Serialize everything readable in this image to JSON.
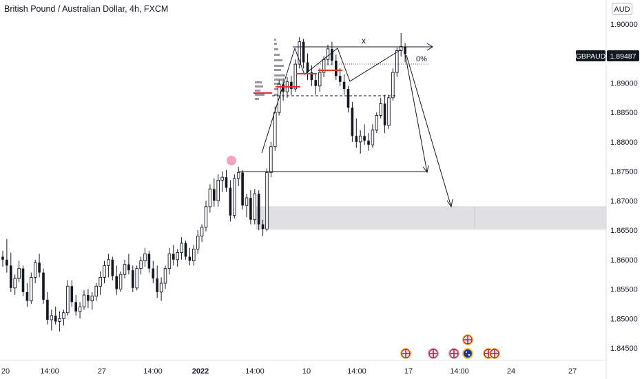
{
  "header": {
    "title": "British Pound / Australian Dollar, 4h, FXCM",
    "currency": "AUD"
  },
  "price_badge": {
    "symbol": "GBPAUD",
    "price": "1.89487",
    "color": "#131722"
  },
  "annotations": {
    "pattern_label": "x",
    "fib_label": "0%"
  },
  "colors": {
    "axis_text": "#131722",
    "grid_bg": "#ffffff",
    "zone_fill": "#e0e0e2",
    "marker": "#f4a4c0",
    "candle": "#131722"
  },
  "chart_data": {
    "type": "candlestick",
    "y_ticks": [
      "1.90000",
      "1.89500",
      "1.89000",
      "1.88500",
      "1.88000",
      "1.87500",
      "1.87000",
      "1.86500",
      "1.86000",
      "1.85500",
      "1.85000",
      "1.84500"
    ],
    "x_ticks": [
      {
        "label": "20",
        "bold": false
      },
      {
        "label": "14:00",
        "bold": false
      },
      {
        "label": "27",
        "bold": false
      },
      {
        "label": "14:00",
        "bold": false
      },
      {
        "label": "2022",
        "bold": true
      },
      {
        "label": "14:00",
        "bold": false
      },
      {
        "label": "10",
        "bold": false
      },
      {
        "label": "14:00",
        "bold": false
      },
      {
        "label": "17",
        "bold": false
      },
      {
        "label": "14:00",
        "bold": false
      },
      {
        "label": "24",
        "bold": false
      },
      {
        "label": "27",
        "bold": false
      }
    ],
    "ylim": [
      1.8424,
      1.9025
    ],
    "candles": [
      [
        1.8605,
        1.8615,
        1.8588,
        1.86
      ],
      [
        1.86,
        1.8635,
        1.8578,
        1.859
      ],
      [
        1.859,
        1.8612,
        1.8545,
        1.8552
      ],
      [
        1.8552,
        1.8575,
        1.854,
        1.8568
      ],
      [
        1.8568,
        1.8598,
        1.8562,
        1.8585
      ],
      [
        1.8585,
        1.859,
        1.8538,
        1.8545
      ],
      [
        1.8545,
        1.856,
        1.852,
        1.853
      ],
      [
        1.853,
        1.8578,
        1.8525,
        1.857
      ],
      [
        1.857,
        1.86,
        1.856,
        1.8595
      ],
      [
        1.8595,
        1.861,
        1.857,
        1.8578
      ],
      [
        1.8578,
        1.8585,
        1.8525,
        1.8532
      ],
      [
        1.8532,
        1.8545,
        1.849,
        1.8498
      ],
      [
        1.8498,
        1.8515,
        1.848,
        1.8505
      ],
      [
        1.8505,
        1.852,
        1.849,
        1.8495
      ],
      [
        1.8495,
        1.8512,
        1.8478,
        1.85
      ],
      [
        1.85,
        1.8515,
        1.8488,
        1.851
      ],
      [
        1.851,
        1.8565,
        1.8505,
        1.8555
      ],
      [
        1.8555,
        1.8565,
        1.852,
        1.8528
      ],
      [
        1.8528,
        1.854,
        1.8505,
        1.8512
      ],
      [
        1.8512,
        1.8528,
        1.85,
        1.852
      ],
      [
        1.852,
        1.8548,
        1.8515,
        1.854
      ],
      [
        1.854,
        1.855,
        1.8518,
        1.853
      ],
      [
        1.853,
        1.8545,
        1.8515,
        1.8538
      ],
      [
        1.8538,
        1.856,
        1.853,
        1.8555
      ],
      [
        1.8555,
        1.858,
        1.854,
        1.857
      ],
      [
        1.857,
        1.8598,
        1.856,
        1.859
      ],
      [
        1.859,
        1.861,
        1.857,
        1.86
      ],
      [
        1.86,
        1.8605,
        1.8565,
        1.8572
      ],
      [
        1.8572,
        1.859,
        1.854,
        1.855
      ],
      [
        1.855,
        1.858,
        1.8545,
        1.8575
      ],
      [
        1.8575,
        1.86,
        1.8568,
        1.8592
      ],
      [
        1.8592,
        1.861,
        1.8575,
        1.8582
      ],
      [
        1.8582,
        1.859,
        1.8545,
        1.8552
      ],
      [
        1.8552,
        1.859,
        1.8548,
        1.8585
      ],
      [
        1.8585,
        1.8605,
        1.8575,
        1.8598
      ],
      [
        1.8598,
        1.862,
        1.8588,
        1.861
      ],
      [
        1.861,
        1.8615,
        1.8578,
        1.8585
      ],
      [
        1.8585,
        1.8598,
        1.856,
        1.8568
      ],
      [
        1.8568,
        1.859,
        1.8535,
        1.8545
      ],
      [
        1.8545,
        1.857,
        1.853,
        1.856
      ],
      [
        1.856,
        1.859,
        1.855,
        1.8585
      ],
      [
        1.8585,
        1.862,
        1.8575,
        1.861
      ],
      [
        1.861,
        1.8625,
        1.859,
        1.86
      ],
      [
        1.86,
        1.8618,
        1.8588,
        1.8612
      ],
      [
        1.8612,
        1.8638,
        1.86,
        1.8628
      ],
      [
        1.8628,
        1.8632,
        1.86,
        1.8605
      ],
      [
        1.8605,
        1.862,
        1.859,
        1.8598
      ],
      [
        1.8598,
        1.8625,
        1.859,
        1.8618
      ],
      [
        1.8618,
        1.865,
        1.861,
        1.864
      ],
      [
        1.864,
        1.866,
        1.863,
        1.8655
      ],
      [
        1.8655,
        1.87,
        1.8648,
        1.869
      ],
      [
        1.869,
        1.8728,
        1.868,
        1.872
      ],
      [
        1.872,
        1.8738,
        1.869,
        1.87
      ],
      [
        1.87,
        1.8745,
        1.869,
        1.8735
      ],
      [
        1.8735,
        1.875,
        1.8715,
        1.874
      ],
      [
        1.874,
        1.8752,
        1.8715,
        1.8722
      ],
      [
        1.8722,
        1.8735,
        1.8665,
        1.8675
      ],
      [
        1.8675,
        1.8745,
        1.867,
        1.8738
      ],
      [
        1.8738,
        1.8758,
        1.8725,
        1.8748
      ],
      [
        1.8748,
        1.8752,
        1.8685,
        1.8692
      ],
      [
        1.8692,
        1.8712,
        1.8672,
        1.8705
      ],
      [
        1.8705,
        1.8718,
        1.866,
        1.8668
      ],
      [
        1.8668,
        1.872,
        1.866,
        1.8712
      ],
      [
        1.8712,
        1.8718,
        1.865,
        1.866
      ],
      [
        1.866,
        1.8668,
        1.864,
        1.8652
      ],
      [
        1.8652,
        1.8755,
        1.8648,
        1.8748
      ],
      [
        1.8748,
        1.88,
        1.874,
        1.8792
      ],
      [
        1.8792,
        1.886,
        1.8785,
        1.885
      ],
      [
        1.885,
        1.8905,
        1.8845,
        1.8898
      ],
      [
        1.8898,
        1.8908,
        1.887,
        1.8885
      ],
      [
        1.8885,
        1.891,
        1.8875,
        1.8902
      ],
      [
        1.8902,
        1.8912,
        1.888,
        1.889
      ],
      [
        1.889,
        1.894,
        1.8885,
        1.8932
      ],
      [
        1.8932,
        1.8978,
        1.8925,
        1.897
      ],
      [
        1.897,
        1.8975,
        1.8925,
        1.8935
      ],
      [
        1.8935,
        1.895,
        1.8905,
        1.8918
      ],
      [
        1.8918,
        1.893,
        1.8895,
        1.8905
      ],
      [
        1.8905,
        1.8915,
        1.888,
        1.8895
      ],
      [
        1.8895,
        1.8925,
        1.8885,
        1.8918
      ],
      [
        1.8918,
        1.8945,
        1.891,
        1.894
      ],
      [
        1.894,
        1.8965,
        1.893,
        1.8958
      ],
      [
        1.8958,
        1.897,
        1.893,
        1.8938
      ],
      [
        1.8938,
        1.8948,
        1.8905,
        1.8912
      ],
      [
        1.8912,
        1.8925,
        1.8895,
        1.8902
      ],
      [
        1.8902,
        1.8915,
        1.888,
        1.889
      ],
      [
        1.889,
        1.8895,
        1.885,
        1.8858
      ],
      [
        1.8858,
        1.8868,
        1.88,
        1.881
      ],
      [
        1.881,
        1.884,
        1.879,
        1.88
      ],
      [
        1.88,
        1.882,
        1.878,
        1.881
      ],
      [
        1.881,
        1.883,
        1.8795,
        1.8802
      ],
      [
        1.8802,
        1.8815,
        1.8785,
        1.8795
      ],
      [
        1.8795,
        1.883,
        1.879,
        1.882
      ],
      [
        1.882,
        1.885,
        1.8815,
        1.8845
      ],
      [
        1.8845,
        1.8875,
        1.884,
        1.8865
      ],
      [
        1.8865,
        1.888,
        1.8815,
        1.8828
      ],
      [
        1.8828,
        1.888,
        1.8822,
        1.8875
      ],
      [
        1.8875,
        1.8925,
        1.887,
        1.8918
      ],
      [
        1.8918,
        1.896,
        1.891,
        1.8955
      ],
      [
        1.8955,
        1.8985,
        1.8945,
        1.8962
      ],
      [
        1.8962,
        1.8968,
        1.8935,
        1.8949
      ]
    ],
    "levels": [
      {
        "name": "double-top-high",
        "value": 1.8965
      },
      {
        "name": "neckline",
        "value": 1.8878
      },
      {
        "name": "support-line",
        "value": 1.8752
      }
    ],
    "demand_zone": [
      1.8652,
      1.869
    ]
  }
}
